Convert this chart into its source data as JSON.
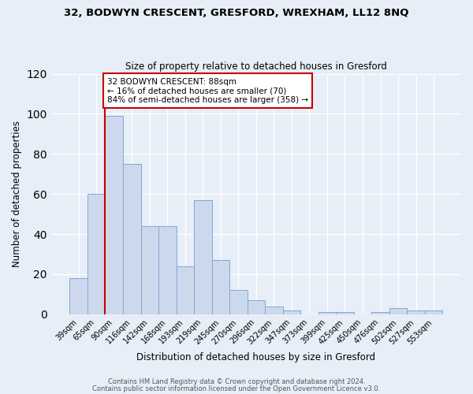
{
  "title1": "32, BODWYN CRESCENT, GRESFORD, WREXHAM, LL12 8NQ",
  "title2": "Size of property relative to detached houses in Gresford",
  "xlabel": "Distribution of detached houses by size in Gresford",
  "ylabel": "Number of detached properties",
  "categories": [
    "39sqm",
    "65sqm",
    "90sqm",
    "116sqm",
    "142sqm",
    "168sqm",
    "193sqm",
    "219sqm",
    "245sqm",
    "270sqm",
    "296sqm",
    "322sqm",
    "347sqm",
    "373sqm",
    "399sqm",
    "425sqm",
    "450sqm",
    "476sqm",
    "502sqm",
    "527sqm",
    "553sqm"
  ],
  "values": [
    18,
    60,
    99,
    75,
    44,
    44,
    24,
    57,
    27,
    12,
    7,
    4,
    2,
    0,
    1,
    1,
    0,
    1,
    3,
    2,
    2
  ],
  "bar_color": "#ccd9ed",
  "bar_edge_color": "#7fa8d0",
  "vline_x_index": 2,
  "vline_color": "#cc0000",
  "annotation_text": "32 BODWYN CRESCENT: 88sqm\n← 16% of detached houses are smaller (70)\n84% of semi-detached houses are larger (358) →",
  "annotation_box_color": "#ffffff",
  "annotation_box_edge": "#cc0000",
  "ylim": [
    0,
    120
  ],
  "yticks": [
    0,
    20,
    40,
    60,
    80,
    100,
    120
  ],
  "footer1": "Contains HM Land Registry data © Crown copyright and database right 2024.",
  "footer2": "Contains public sector information licensed under the Open Government Licence v3.0.",
  "background_color": "#e8eef7",
  "plot_background": "#e8eef7"
}
